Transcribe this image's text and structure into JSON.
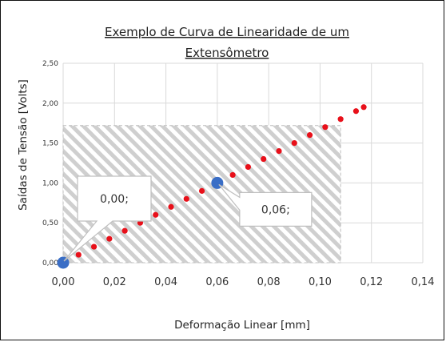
{
  "chart_data": {
    "type": "scatter",
    "title_lines": [
      "Exemplo de Curva de Linearidade de um",
      "Extensômetro"
    ],
    "xlabel": "Deformação Linear [mm]",
    "ylabel": "Saídas de Tensão [Volts]",
    "xlim": [
      0,
      0.14
    ],
    "ylim": [
      0,
      2.5
    ],
    "x_ticks": [
      "0,00",
      "0,02",
      "0,04",
      "0,06",
      "0,08",
      "0,10",
      "0,12",
      "0,14"
    ],
    "y_ticks": [
      "0,00",
      "0,50",
      "1,00",
      "1,50",
      "2,00",
      "2,50"
    ],
    "grid": true,
    "series": [
      {
        "color": "#e8101a",
        "x": [
          0.0,
          0.006,
          0.012,
          0.018,
          0.024,
          0.03,
          0.036,
          0.042,
          0.048,
          0.054,
          0.06,
          0.066,
          0.072,
          0.078,
          0.084,
          0.09,
          0.096,
          0.102,
          0.108,
          0.114,
          0.117
        ],
        "y": [
          0.0,
          0.1,
          0.2,
          0.3,
          0.4,
          0.5,
          0.6,
          0.7,
          0.8,
          0.9,
          1.0,
          1.1,
          1.2,
          1.3,
          1.4,
          1.5,
          1.6,
          1.7,
          1.8,
          1.9,
          1.95
        ]
      }
    ],
    "highlight_points": [
      {
        "x": 0.0,
        "y": 0.0,
        "color": "#3a6ec6"
      },
      {
        "x": 0.06,
        "y": 1.0,
        "color": "#3a6ec6"
      }
    ],
    "shaded_region": {
      "x": [
        0.0,
        0.108
      ],
      "y": [
        0.0,
        1.72
      ],
      "pattern": "diagonal-hatch"
    },
    "callouts": [
      {
        "text": "0,00;",
        "anchor_x": 0.0,
        "anchor_y": 0.0
      },
      {
        "text": "0,06;",
        "anchor_x": 0.06,
        "anchor_y": 1.0
      }
    ]
  }
}
